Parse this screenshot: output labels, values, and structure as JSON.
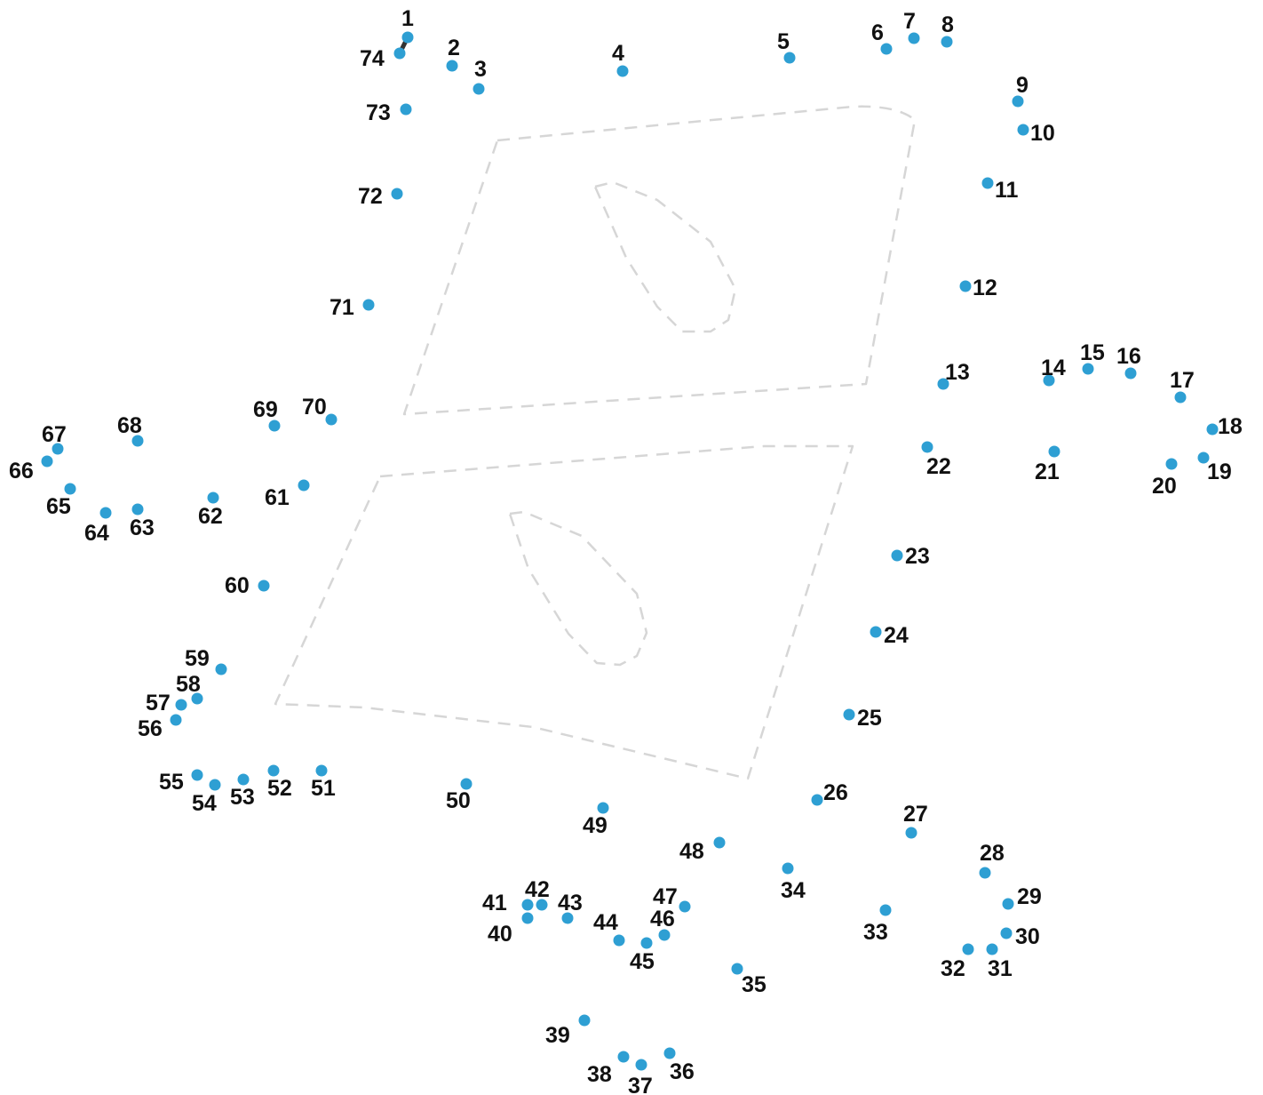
{
  "puzzle": {
    "dot_color": "#2e9fd3",
    "label_color": "#111111",
    "guide_color": "#d6d6d6",
    "line_color": "#333333",
    "connected_up_to": 1,
    "dots": [
      {
        "n": "1"
      },
      {
        "n": "2"
      },
      {
        "n": "3"
      },
      {
        "n": "4"
      },
      {
        "n": "5"
      },
      {
        "n": "6"
      },
      {
        "n": "7"
      },
      {
        "n": "8"
      },
      {
        "n": "9"
      },
      {
        "n": "10"
      },
      {
        "n": "11"
      },
      {
        "n": "12"
      },
      {
        "n": "13"
      },
      {
        "n": "14"
      },
      {
        "n": "15"
      },
      {
        "n": "16"
      },
      {
        "n": "17"
      },
      {
        "n": "18"
      },
      {
        "n": "19"
      },
      {
        "n": "20"
      },
      {
        "n": "21"
      },
      {
        "n": "22"
      },
      {
        "n": "23"
      },
      {
        "n": "24"
      },
      {
        "n": "25"
      },
      {
        "n": "26"
      },
      {
        "n": "27"
      },
      {
        "n": "28"
      },
      {
        "n": "29"
      },
      {
        "n": "30"
      },
      {
        "n": "31"
      },
      {
        "n": "32"
      },
      {
        "n": "33"
      },
      {
        "n": "34"
      },
      {
        "n": "35"
      },
      {
        "n": "36"
      },
      {
        "n": "37"
      },
      {
        "n": "38"
      },
      {
        "n": "39"
      },
      {
        "n": "40"
      },
      {
        "n": "41"
      },
      {
        "n": "42"
      },
      {
        "n": "43"
      },
      {
        "n": "44"
      },
      {
        "n": "45"
      },
      {
        "n": "46"
      },
      {
        "n": "47"
      },
      {
        "n": "48"
      },
      {
        "n": "49"
      },
      {
        "n": "50"
      },
      {
        "n": "51"
      },
      {
        "n": "52"
      },
      {
        "n": "53"
      },
      {
        "n": "54"
      },
      {
        "n": "55"
      },
      {
        "n": "56"
      },
      {
        "n": "57"
      },
      {
        "n": "58"
      },
      {
        "n": "59"
      },
      {
        "n": "60"
      },
      {
        "n": "61"
      },
      {
        "n": "62"
      },
      {
        "n": "63"
      },
      {
        "n": "64"
      },
      {
        "n": "65"
      },
      {
        "n": "66"
      },
      {
        "n": "67"
      },
      {
        "n": "68"
      },
      {
        "n": "69"
      },
      {
        "n": "70"
      },
      {
        "n": "71"
      },
      {
        "n": "72"
      },
      {
        "n": "73"
      },
      {
        "n": "74"
      }
    ]
  }
}
